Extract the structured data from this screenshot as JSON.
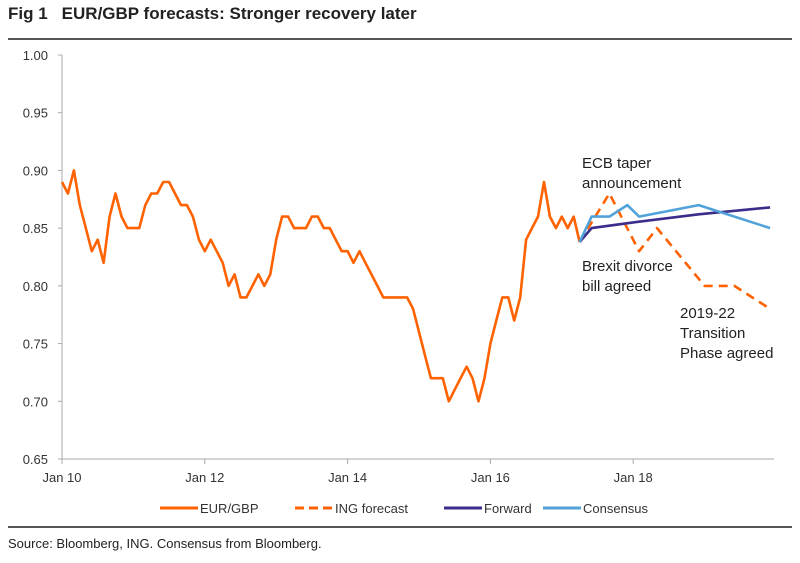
{
  "figure_label": "Fig 1",
  "source": "Source: Bloomberg, ING. Consensus from Bloomberg.",
  "chart_data": {
    "type": "line",
    "title": "EUR/GBP forecasts: Stronger recovery later",
    "xlabel": "",
    "ylabel": "",
    "ylim": [
      0.65,
      1.0
    ],
    "yticks": [
      "1.00",
      "0.95",
      "0.90",
      "0.85",
      "0.80",
      "0.75",
      "0.70",
      "0.65"
    ],
    "xlim": [
      "2010-01",
      "2020-01"
    ],
    "xticks": [
      {
        "date": "2010-01",
        "label": "Jan 10"
      },
      {
        "date": "2012-01",
        "label": "Jan 12"
      },
      {
        "date": "2014-01",
        "label": "Jan 14"
      },
      {
        "date": "2016-01",
        "label": "Jan 16"
      },
      {
        "date": "2018-01",
        "label": "Jan 18"
      }
    ],
    "grid": false,
    "legend_position": "bottom",
    "colors": {
      "eurgbp": "#FF6200",
      "ing": "#FF6200",
      "forward": "#3A2D8C",
      "consensus": "#52A2DA"
    },
    "series": [
      {
        "name": "EUR/GBP",
        "style": "solid",
        "points": [
          [
            "2010-01",
            0.89
          ],
          [
            "2010-02",
            0.88
          ],
          [
            "2010-03",
            0.9
          ],
          [
            "2010-04",
            0.87
          ],
          [
            "2010-05",
            0.85
          ],
          [
            "2010-06",
            0.83
          ],
          [
            "2010-07",
            0.84
          ],
          [
            "2010-08",
            0.82
          ],
          [
            "2010-09",
            0.86
          ],
          [
            "2010-10",
            0.88
          ],
          [
            "2010-11",
            0.86
          ],
          [
            "2010-12",
            0.85
          ],
          [
            "2011-01",
            0.85
          ],
          [
            "2011-02",
            0.85
          ],
          [
            "2011-03",
            0.87
          ],
          [
            "2011-04",
            0.88
          ],
          [
            "2011-05",
            0.88
          ],
          [
            "2011-06",
            0.89
          ],
          [
            "2011-07",
            0.89
          ],
          [
            "2011-08",
            0.88
          ],
          [
            "2011-09",
            0.87
          ],
          [
            "2011-10",
            0.87
          ],
          [
            "2011-11",
            0.86
          ],
          [
            "2011-12",
            0.84
          ],
          [
            "2012-01",
            0.83
          ],
          [
            "2012-02",
            0.84
          ],
          [
            "2012-03",
            0.83
          ],
          [
            "2012-04",
            0.82
          ],
          [
            "2012-05",
            0.8
          ],
          [
            "2012-06",
            0.81
          ],
          [
            "2012-07",
            0.79
          ],
          [
            "2012-08",
            0.79
          ],
          [
            "2012-09",
            0.8
          ],
          [
            "2012-10",
            0.81
          ],
          [
            "2012-11",
            0.8
          ],
          [
            "2012-12",
            0.81
          ],
          [
            "2013-01",
            0.84
          ],
          [
            "2013-02",
            0.86
          ],
          [
            "2013-03",
            0.86
          ],
          [
            "2013-04",
            0.85
          ],
          [
            "2013-05",
            0.85
          ],
          [
            "2013-06",
            0.85
          ],
          [
            "2013-07",
            0.86
          ],
          [
            "2013-08",
            0.86
          ],
          [
            "2013-09",
            0.85
          ],
          [
            "2013-10",
            0.85
          ],
          [
            "2013-11",
            0.84
          ],
          [
            "2013-12",
            0.83
          ],
          [
            "2014-01",
            0.83
          ],
          [
            "2014-02",
            0.82
          ],
          [
            "2014-03",
            0.83
          ],
          [
            "2014-04",
            0.82
          ],
          [
            "2014-05",
            0.81
          ],
          [
            "2014-06",
            0.8
          ],
          [
            "2014-07",
            0.79
          ],
          [
            "2014-08",
            0.79
          ],
          [
            "2014-09",
            0.79
          ],
          [
            "2014-10",
            0.79
          ],
          [
            "2014-11",
            0.79
          ],
          [
            "2014-12",
            0.78
          ],
          [
            "2015-01",
            0.76
          ],
          [
            "2015-02",
            0.74
          ],
          [
            "2015-03",
            0.72
          ],
          [
            "2015-04",
            0.72
          ],
          [
            "2015-05",
            0.72
          ],
          [
            "2015-06",
            0.7
          ],
          [
            "2015-07",
            0.71
          ],
          [
            "2015-08",
            0.72
          ],
          [
            "2015-09",
            0.73
          ],
          [
            "2015-10",
            0.72
          ],
          [
            "2015-11",
            0.7
          ],
          [
            "2015-12",
            0.72
          ],
          [
            "2016-01",
            0.75
          ],
          [
            "2016-02",
            0.77
          ],
          [
            "2016-03",
            0.79
          ],
          [
            "2016-04",
            0.79
          ],
          [
            "2016-05",
            0.77
          ],
          [
            "2016-06",
            0.79
          ],
          [
            "2016-07",
            0.84
          ],
          [
            "2016-08",
            0.85
          ],
          [
            "2016-09",
            0.86
          ],
          [
            "2016-10",
            0.89
          ],
          [
            "2016-11",
            0.86
          ],
          [
            "2016-12",
            0.85
          ],
          [
            "2017-01",
            0.86
          ],
          [
            "2017-02",
            0.85
          ],
          [
            "2017-03",
            0.86
          ],
          [
            "2017-04",
            0.838
          ]
        ]
      },
      {
        "name": "ING forecast",
        "style": "dashed",
        "points": [
          [
            "2017-04",
            0.838
          ],
          [
            "2017-09",
            0.88
          ],
          [
            "2018-02",
            0.83
          ],
          [
            "2018-05",
            0.85
          ],
          [
            "2019-01",
            0.8
          ],
          [
            "2019-06",
            0.8
          ],
          [
            "2019-12",
            0.78
          ]
        ]
      },
      {
        "name": "Forward",
        "style": "solid",
        "points": [
          [
            "2017-04",
            0.838
          ],
          [
            "2017-06",
            0.85
          ],
          [
            "2018-01",
            0.855
          ],
          [
            "2018-12",
            0.862
          ],
          [
            "2019-12",
            0.868
          ]
        ]
      },
      {
        "name": "Consensus",
        "style": "solid",
        "points": [
          [
            "2017-04",
            0.838
          ],
          [
            "2017-06",
            0.86
          ],
          [
            "2017-09",
            0.86
          ],
          [
            "2017-12",
            0.87
          ],
          [
            "2018-02",
            0.86
          ],
          [
            "2018-12",
            0.87
          ],
          [
            "2019-12",
            0.85
          ]
        ]
      }
    ],
    "annotations": [
      {
        "lines": [
          "ECB taper",
          "announcement"
        ]
      },
      {
        "lines": [
          "Brexit divorce",
          "bill agreed"
        ]
      },
      {
        "lines": [
          "2019-22",
          "Transition",
          "Phase agreed"
        ]
      }
    ]
  }
}
